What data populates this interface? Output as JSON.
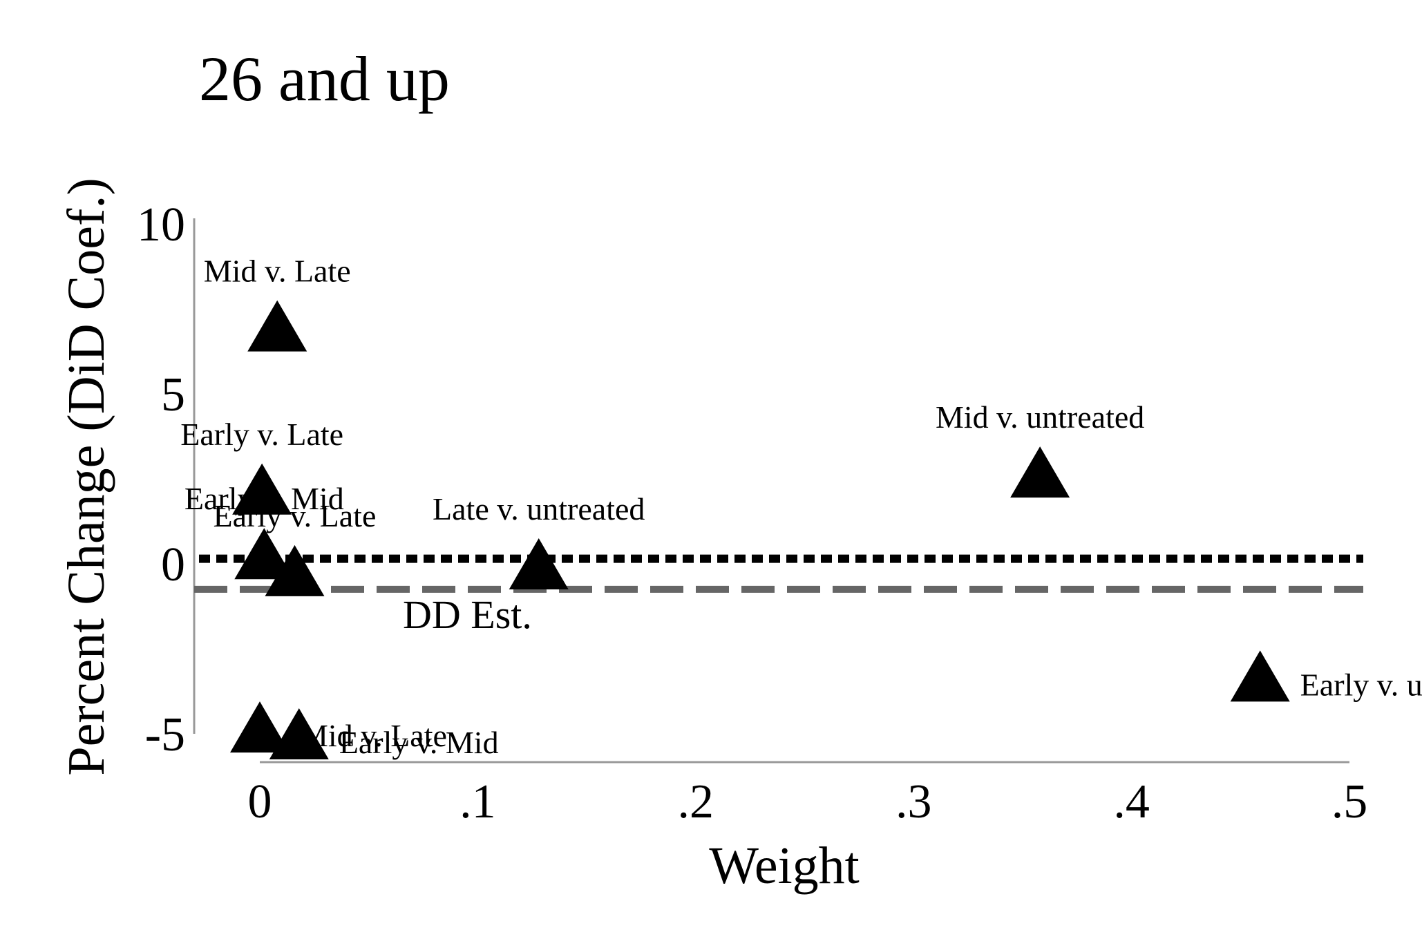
{
  "chart_data": {
    "type": "scatter",
    "title": "26 and up",
    "xlabel": "Weight",
    "ylabel": "Percent Change (DiD Coef.)",
    "xlim": [
      -0.03,
      0.5
    ],
    "ylim": [
      -5.5,
      10
    ],
    "grid": false,
    "x_ticks": [
      {
        "value": 0,
        "label": "0"
      },
      {
        "value": 0.1,
        "label": ".1"
      },
      {
        "value": 0.2,
        "label": ".2"
      },
      {
        "value": 0.3,
        "label": ".3"
      },
      {
        "value": 0.4,
        "label": ".4"
      },
      {
        "value": 0.5,
        "label": ".5"
      }
    ],
    "y_ticks": [
      {
        "value": -5,
        "label": "-5"
      },
      {
        "value": 0,
        "label": "0"
      },
      {
        "value": 5,
        "label": "5"
      },
      {
        "value": 10,
        "label": "10"
      }
    ],
    "points": [
      {
        "label": "Mid v. Late",
        "x": 0.008,
        "y": 7.0,
        "label_pos": "above"
      },
      {
        "label": "Early v. Late",
        "x": 0.001,
        "y": 2.2,
        "label_pos": "above"
      },
      {
        "label": "Early v. Mid",
        "x": 0.002,
        "y": 0.3,
        "label_pos": "above"
      },
      {
        "label": "Early v. Late",
        "x": 0.016,
        "y": -0.2,
        "label_pos": "above"
      },
      {
        "label": "Late v. untreated",
        "x": 0.128,
        "y": 0.0,
        "label_pos": "above"
      },
      {
        "label": "Mid v. untreated",
        "x": 0.358,
        "y": 2.7,
        "label_pos": "above"
      },
      {
        "label": "Early v. untreated",
        "x": 0.459,
        "y": -3.3,
        "label_pos": "right"
      },
      {
        "label": "Mid v. Late",
        "x": 0.0,
        "y": -4.8,
        "label_pos": "right"
      },
      {
        "label": "Early v. Mid",
        "x": 0.018,
        "y": -5.0,
        "label_pos": "right"
      }
    ],
    "reference_lines": [
      {
        "name": "zero",
        "y": 0.15,
        "style": "dotted",
        "color": "#000000"
      },
      {
        "name": "DD Est.",
        "label": "DD Est.",
        "y": -0.75,
        "style": "dashed",
        "color": "#666666"
      }
    ],
    "marker": {
      "shape": "triangle",
      "color": "#000000"
    },
    "axis_color": "#999999"
  }
}
